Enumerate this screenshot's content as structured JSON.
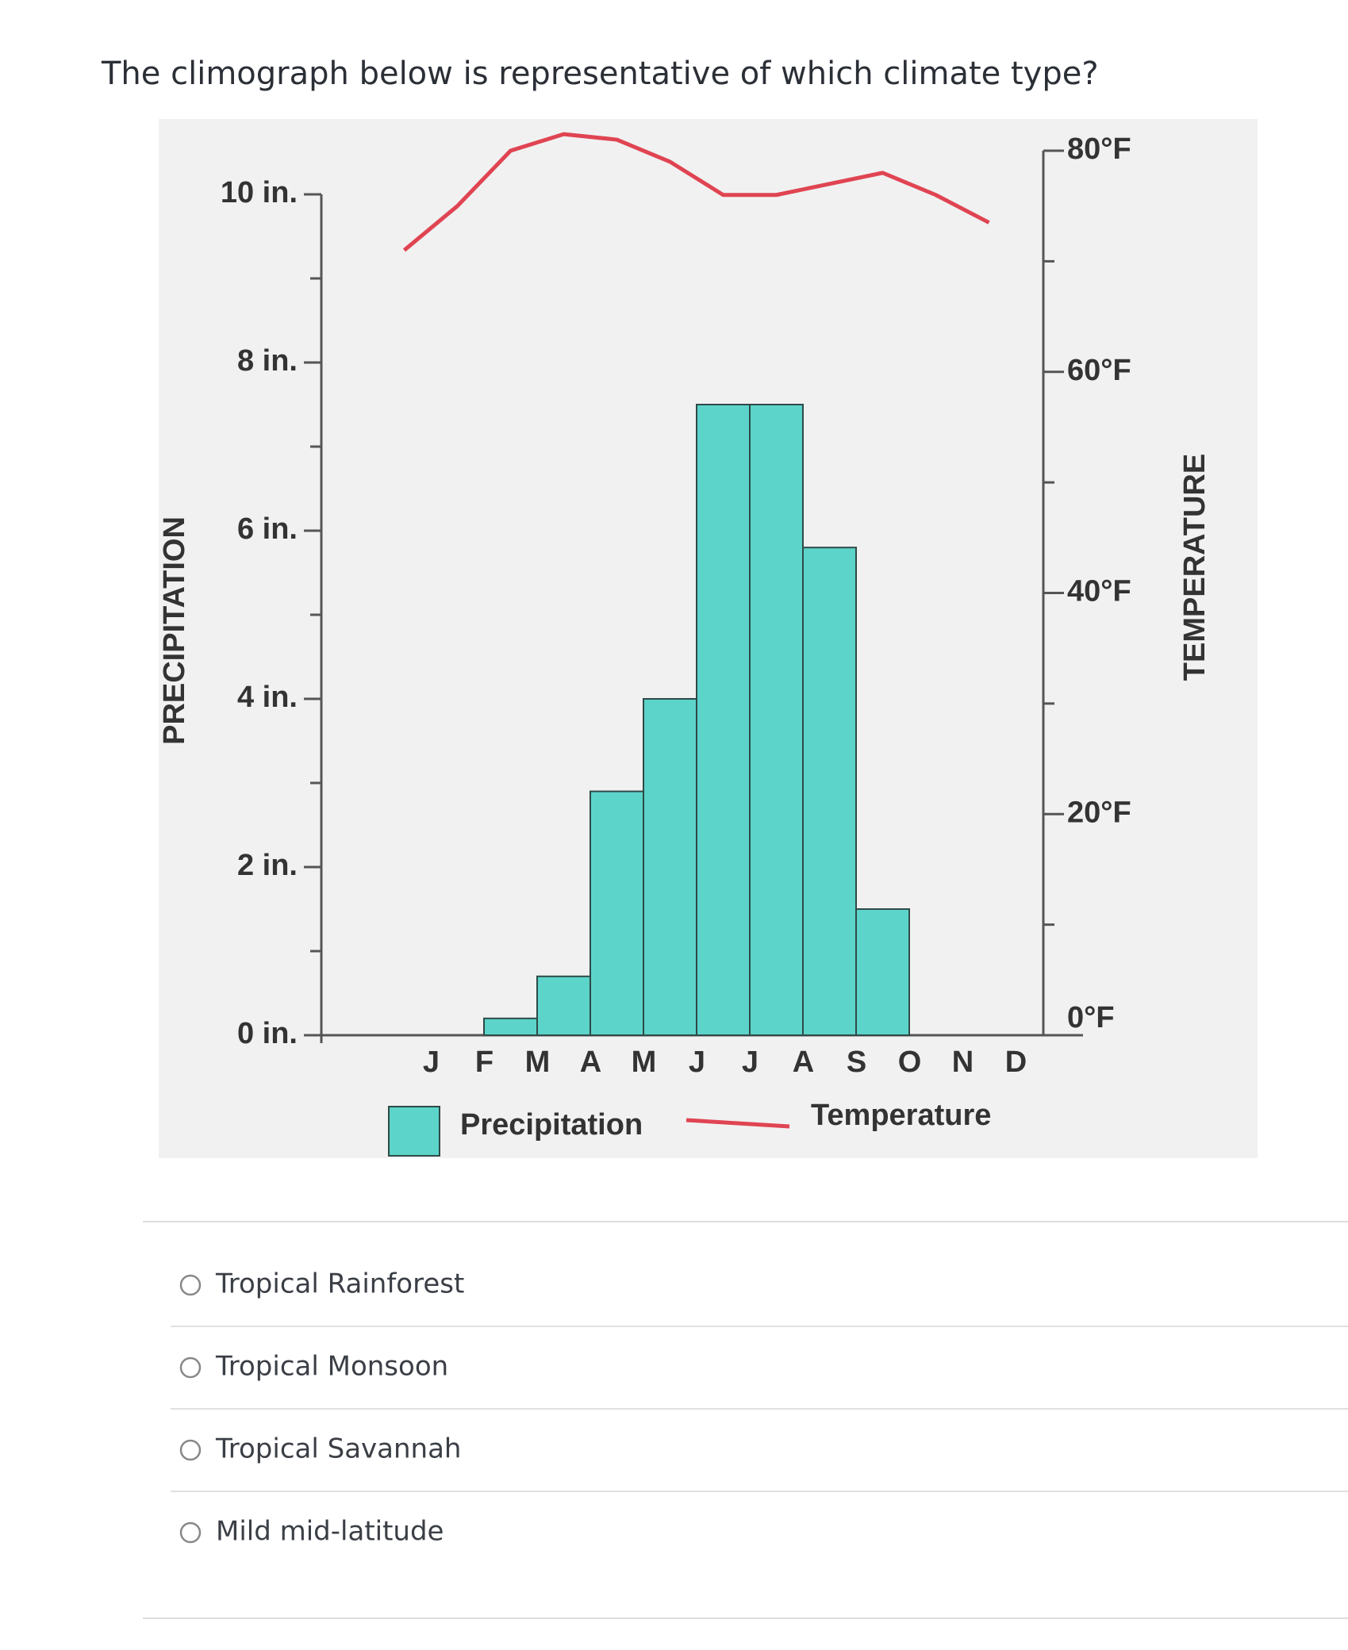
{
  "question": "The climograph below is representative of which climate type?",
  "chart_data": {
    "type": "bar",
    "categories": [
      "J",
      "F",
      "M",
      "A",
      "M",
      "J",
      "J",
      "A",
      "S",
      "O",
      "N",
      "D"
    ],
    "ylabel": "PRECIPITATION",
    "y2label": "TEMPERATURE",
    "ylim": [
      0,
      10
    ],
    "yticks": [
      {
        "value": 0,
        "label": "0 in."
      },
      {
        "value": 2,
        "label": "2 in."
      },
      {
        "value": 4,
        "label": "4 in."
      },
      {
        "value": 6,
        "label": "6 in."
      },
      {
        "value": 8,
        "label": "8 in."
      },
      {
        "value": 10,
        "label": "10 in."
      }
    ],
    "y2lim": [
      0,
      80
    ],
    "y2ticks": [
      {
        "value": 0,
        "label": "0°F"
      },
      {
        "value": 20,
        "label": "20°F"
      },
      {
        "value": 40,
        "label": "40°F"
      },
      {
        "value": 60,
        "label": "60°F"
      },
      {
        "value": 80,
        "label": "80°F"
      }
    ],
    "series": [
      {
        "name": "Precipitation",
        "type": "bar",
        "color": "#5cd4c9",
        "values": [
          0,
          0,
          0.2,
          0.7,
          2.9,
          4.0,
          7.5,
          7.5,
          5.8,
          1.5,
          0,
          0
        ]
      },
      {
        "name": "Temperature",
        "type": "line",
        "axis": "y2",
        "color": "#e04452",
        "values": [
          71,
          75,
          80,
          81.5,
          81,
          79,
          76,
          76,
          77,
          78,
          76,
          73.5
        ]
      }
    ]
  },
  "options": [
    "Tropical Rainforest",
    "Tropical Monsoon",
    "Tropical Savannah",
    "Mild mid-latitude"
  ]
}
